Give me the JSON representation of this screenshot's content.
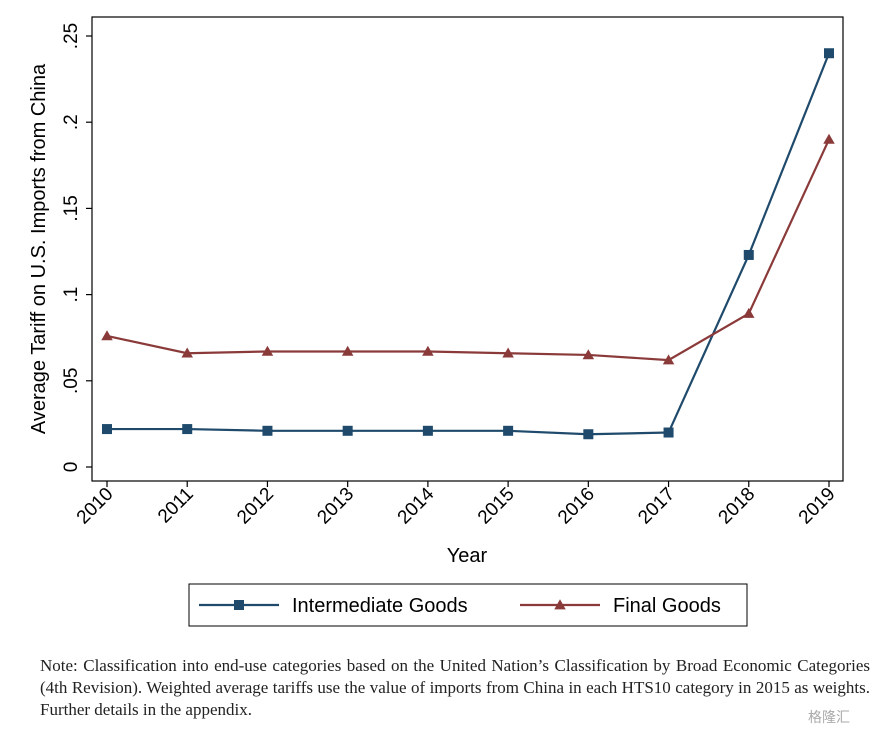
{
  "chart_data": {
    "type": "line",
    "title": "",
    "xlabel": "Year",
    "ylabel": "Average Tariff on U.S. Imports from China",
    "x": [
      "2010",
      "2011",
      "2012",
      "2013",
      "2014",
      "2015",
      "2016",
      "2017",
      "2018",
      "2019"
    ],
    "yticks": [
      {
        "value": 0,
        "label": "0"
      },
      {
        "value": 0.05,
        "label": ".05"
      },
      {
        "value": 0.1,
        "label": ".1"
      },
      {
        "value": 0.15,
        "label": ".15"
      },
      {
        "value": 0.2,
        "label": ".2"
      },
      {
        "value": 0.25,
        "label": ".25"
      }
    ],
    "xlim": [
      2010,
      2019
    ],
    "ylim": [
      0,
      0.25
    ],
    "grid": false,
    "legend_position": "bottom",
    "series": [
      {
        "name": "Intermediate Goods",
        "marker": "square",
        "color": "#1f4a6b",
        "values": [
          0.022,
          0.022,
          0.021,
          0.021,
          0.021,
          0.021,
          0.019,
          0.02,
          0.123,
          0.24
        ]
      },
      {
        "name": "Final Goods",
        "marker": "triangle",
        "color": "#8b3a3a",
        "values": [
          0.076,
          0.066,
          0.067,
          0.067,
          0.067,
          0.066,
          0.065,
          0.062,
          0.089,
          0.19
        ]
      }
    ]
  },
  "note": "Note: Classification into end-use categories based on the United Nation’s Classification by Broad Economic Categories (4th Revision). Weighted average tariffs use the value of imports from China in each HTS10 category in 2015 as weights. Further details in the appendix.",
  "watermark": "格隆汇"
}
